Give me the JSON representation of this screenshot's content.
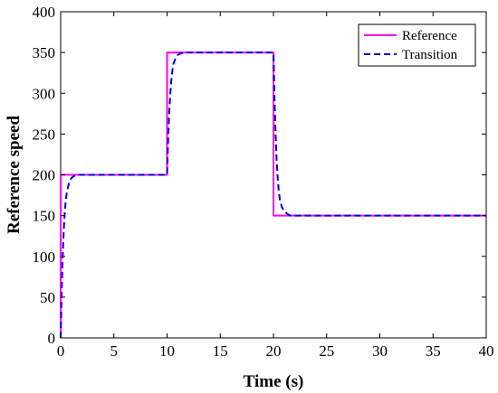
{
  "chart_data": {
    "type": "line",
    "title": "",
    "xlabel": "Time (s)",
    "ylabel": "Reference speed",
    "xlim": [
      0,
      40
    ],
    "ylim": [
      0,
      400
    ],
    "xticks": [
      0,
      5,
      10,
      15,
      20,
      25,
      30,
      35,
      40
    ],
    "yticks": [
      0,
      50,
      100,
      150,
      200,
      250,
      300,
      350,
      400
    ],
    "grid": false,
    "legend_position": "top-right",
    "series": [
      {
        "name": "Reference",
        "color": "#ff00ff",
        "style": "solid",
        "x": [
          0,
          0,
          10,
          10,
          20,
          20,
          40
        ],
        "y": [
          0,
          200,
          200,
          350,
          350,
          150,
          150
        ]
      },
      {
        "name": "Transition",
        "color": "#0000cd",
        "style": "dashed",
        "x": [
          0,
          0.1,
          0.2,
          0.3,
          0.4,
          0.5,
          0.6,
          0.8,
          1.0,
          1.3,
          1.6,
          2.0,
          10.0,
          10.1,
          10.2,
          10.3,
          10.4,
          10.5,
          10.6,
          10.8,
          11.0,
          11.3,
          11.6,
          12.0,
          20.0,
          20.1,
          20.2,
          20.3,
          20.4,
          20.5,
          20.6,
          20.8,
          21.0,
          21.3,
          21.6,
          22.0,
          40.0
        ],
        "y": [
          0,
          61,
          103,
          135,
          157,
          171,
          180,
          191,
          196,
          199,
          200,
          200,
          200,
          243,
          275,
          299,
          316,
          328,
          336,
          343,
          347,
          349,
          350,
          350,
          350,
          293,
          250,
          218,
          196,
          180,
          170,
          160,
          156,
          152,
          150,
          150,
          150
        ]
      }
    ]
  }
}
